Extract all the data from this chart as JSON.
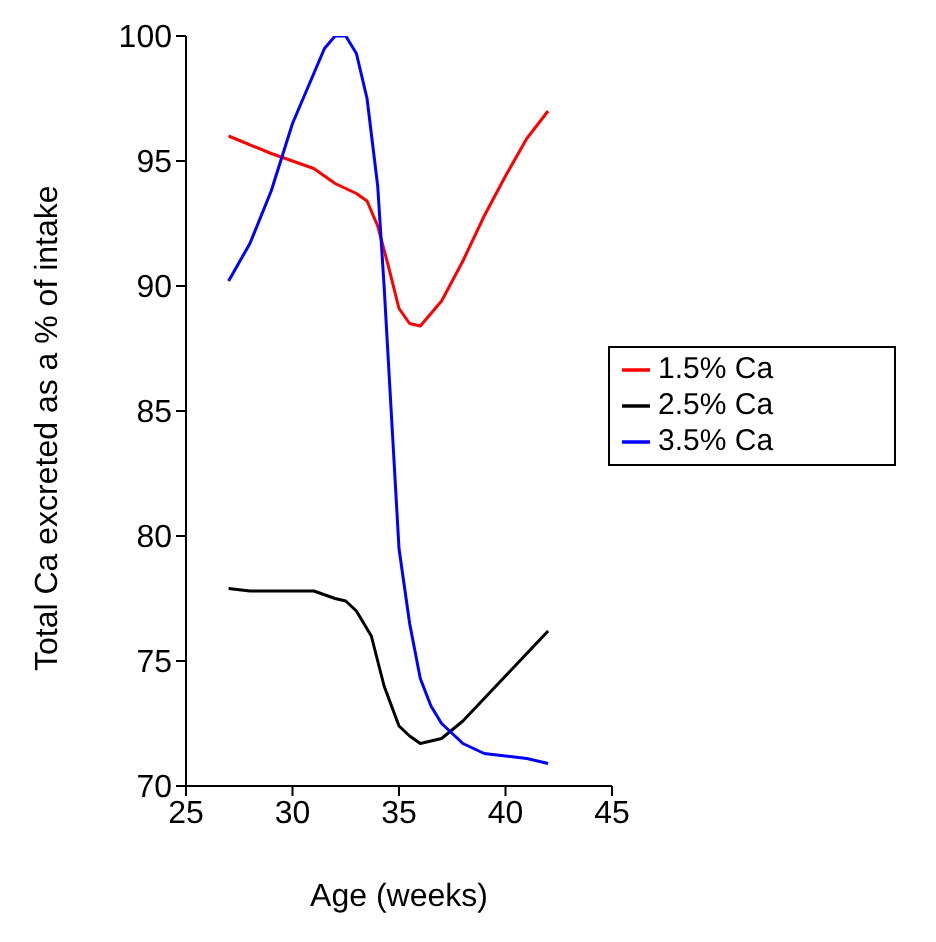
{
  "chart_data": {
    "type": "line",
    "xlabel": "Age (weeks)",
    "ylabel": "Total Ca excreted as a % of intake",
    "xlim": [
      25,
      45
    ],
    "xticks": [
      25,
      30,
      35,
      40,
      45
    ],
    "ylim": [
      70,
      100
    ],
    "yticks": [
      70,
      75,
      80,
      85,
      90,
      95,
      100
    ],
    "grid": false,
    "legend": "right",
    "marker": "none",
    "line_style": "solid",
    "series": [
      {
        "name": "1.5% Ca",
        "color": "#ff0000",
        "x": [
          27,
          29,
          31,
          32,
          33,
          33.5,
          34,
          34.5,
          35,
          35.5,
          36,
          37,
          38,
          39,
          40,
          41,
          42
        ],
        "values": [
          96,
          95.3,
          94.7,
          94.1,
          93.7,
          93.4,
          92.4,
          90.8,
          89.1,
          88.5,
          88.4,
          89.4,
          91,
          92.8,
          94.4,
          95.9,
          97
        ]
      },
      {
        "name": "2.5% Ca",
        "color": "#000000",
        "x": [
          27,
          28,
          29,
          30,
          31,
          32,
          32.5,
          33,
          33.7,
          34.3,
          35,
          35.5,
          36,
          37,
          38,
          39,
          40,
          41,
          42
        ],
        "values": [
          77.9,
          77.8,
          77.8,
          77.8,
          77.8,
          77.5,
          77.4,
          77,
          76,
          74,
          72.4,
          72,
          71.7,
          71.9,
          72.6,
          73.5,
          74.4,
          75.3,
          76.2
        ]
      },
      {
        "name": "3.5% Ca",
        "color": "#0000ff",
        "x": [
          27,
          28,
          29,
          30,
          31,
          31.5,
          32,
          32.5,
          33,
          33.5,
          34,
          34.3,
          34.7,
          35,
          35.5,
          36,
          36.5,
          37,
          38,
          39,
          40,
          41,
          42
        ],
        "values": [
          90.2,
          91.7,
          93.8,
          96.5,
          98.5,
          99.5,
          100,
          100,
          99.3,
          97.5,
          94,
          90,
          84,
          79.5,
          76.5,
          74.3,
          73.2,
          72.5,
          71.7,
          71.3,
          71.2,
          71.1,
          70.9
        ]
      }
    ]
  }
}
